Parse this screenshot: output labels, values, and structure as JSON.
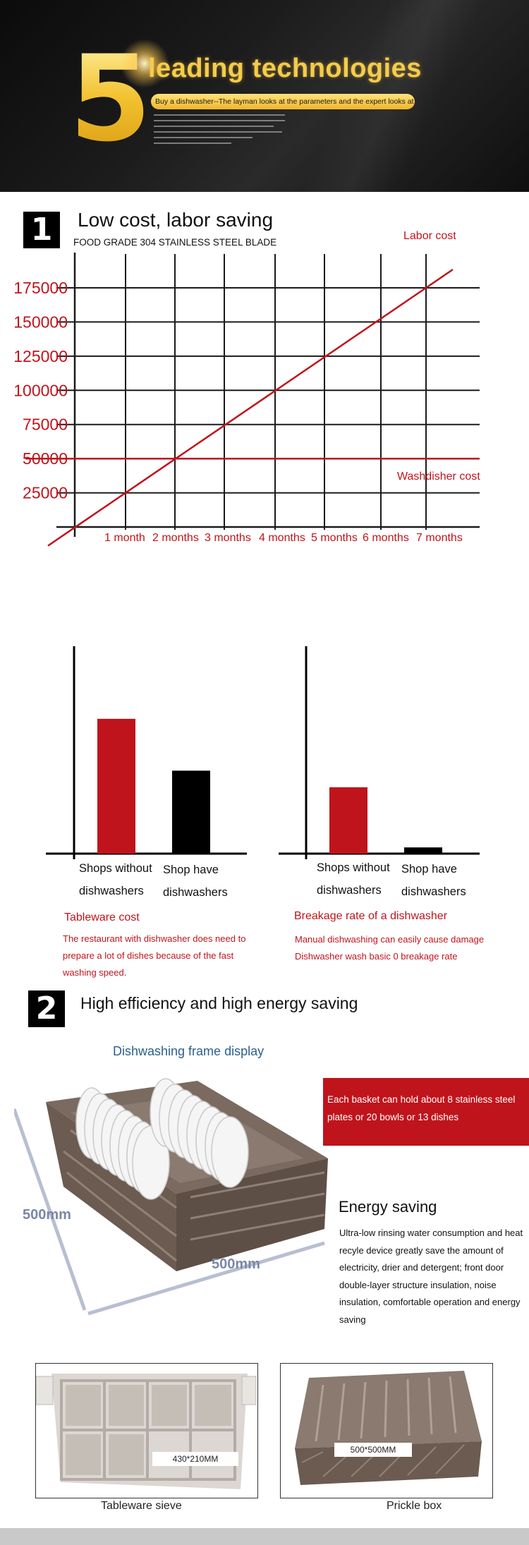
{
  "hero": {
    "big_number": "5",
    "title": "leading technologies",
    "subtitle": "Buy a dishwasher--The layman looks at the parameters and the expert looks at the details"
  },
  "section1": {
    "number": "1",
    "title": "Low cost, labor saving",
    "subheading": "FOOD GRADE 304 STAINLESS STEEL BLADE"
  },
  "section2": {
    "number": "2",
    "title": "High efficiency and high energy saving",
    "frame_title": "Dishwashing frame display",
    "dim_left": "500mm",
    "dim_bottom": "500mm",
    "red_box": {
      "line1": "Each basket can hold about 8 stainless steel",
      "line2": "plates or 20 bowls or 13 dishes"
    },
    "energy_title": "Energy saving",
    "energy_lines": [
      "Ultra-low rinsing water consumption and heat",
      "recyle device greatly save the amount of",
      "electricity, drier and detergent; front door",
      "double-layer structure insulation, noise",
      "insulation, comfortable operation and energy",
      "saving"
    ],
    "products": [
      {
        "caption": "Tableware sieve",
        "size": "430*210MM"
      },
      {
        "caption": "Prickle box",
        "size": "500*500MM"
      }
    ]
  },
  "chart_data": [
    {
      "type": "line",
      "title": "",
      "x": [
        "1 month",
        "2 months",
        "3 months",
        "4 months",
        "5 months",
        "6 months",
        "7 months"
      ],
      "y_ticks": [
        25000,
        50000,
        75000,
        100000,
        125000,
        150000,
        175000
      ],
      "y_tick_labels": [
        "25000",
        "50000",
        "75000",
        "100000",
        "125000",
        "150000",
        "175000"
      ],
      "ylim": [
        0,
        190000
      ],
      "grid": true,
      "series": [
        {
          "name": "Labor cost",
          "values": [
            25000,
            50000,
            75000,
            100000,
            125000,
            150000,
            175000
          ],
          "color": "#c0141c"
        },
        {
          "name": "Washdisher cost",
          "values": [
            50000,
            50000,
            50000,
            50000,
            50000,
            50000,
            50000
          ],
          "color": "#c0141c"
        }
      ]
    },
    {
      "type": "bar",
      "title": "Tableware cost",
      "categories": [
        "Shops without dishwashers",
        "Shop have dishwashers"
      ],
      "category_lines": [
        [
          "Shops without",
          "dishwashers"
        ],
        [
          "Shop have",
          "dishwashers"
        ]
      ],
      "values": [
        65,
        40
      ],
      "ylim": [
        0,
        100
      ],
      "colors": [
        "#c0141c",
        "#000000"
      ],
      "caption": [
        "The restaurant with dishwasher does need to",
        "prepare a lot of dishes because of the fast",
        "washing speed."
      ]
    },
    {
      "type": "bar",
      "title": "Breakage rate of a dishwasher",
      "categories": [
        "Shops without dishwashers",
        "Shop have dishwashers"
      ],
      "category_lines": [
        [
          "Shops without",
          "dishwashers"
        ],
        [
          "Shop have",
          "dishwashers"
        ]
      ],
      "values": [
        32,
        3
      ],
      "ylim": [
        0,
        100
      ],
      "colors": [
        "#c0141c",
        "#000000"
      ],
      "caption": [
        "Manual dishwashing can easily cause damage",
        "Dishwasher wash basic 0 breakage rate"
      ]
    }
  ]
}
